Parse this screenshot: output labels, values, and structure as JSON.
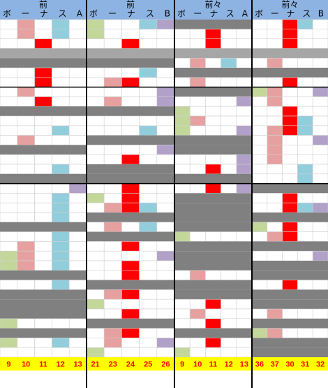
{
  "panels": [
    {
      "top": "前",
      "bottom": "ボーナスA",
      "numbers": [
        9,
        10,
        11,
        12,
        13
      ]
    },
    {
      "top": "前",
      "bottom": "ボーナスB",
      "numbers": [
        21,
        23,
        24,
        25,
        26
      ]
    },
    {
      "top": "前々",
      "bottom": "ボーナスA",
      "numbers": [
        9,
        10,
        11,
        12,
        13
      ]
    },
    {
      "top": "前々",
      "bottom": "ボーナスB",
      "numbers": [
        36,
        37,
        30,
        31,
        32
      ]
    }
  ]
}
